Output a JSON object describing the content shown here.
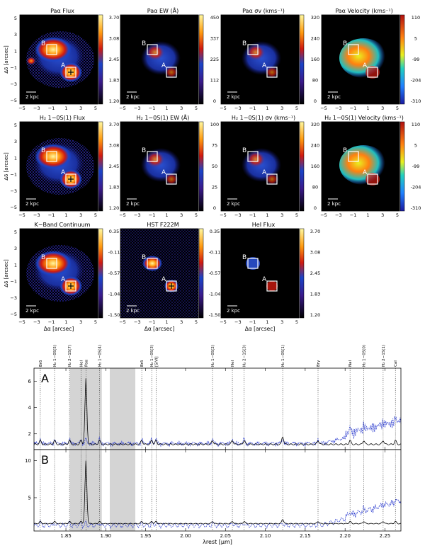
{
  "maps": {
    "panels": [
      {
        "title": "Paα Flux",
        "cbar": [
          "3.70",
          "3.08",
          "2.45",
          "1.83",
          "1.20"
        ],
        "cmap": "heat",
        "blob": "flux"
      },
      {
        "title": "Paα EW (Å)",
        "cbar": [
          "450",
          "337",
          "225",
          "112",
          "0"
        ],
        "cmap": "heat",
        "blob": "ew"
      },
      {
        "title": "Paα σv (kms⁻¹)",
        "cbar": [
          "320",
          "240",
          "160",
          "80",
          "0"
        ],
        "cmap": "heat",
        "blob": "sig"
      },
      {
        "title": "Paα Velocity (kms⁻¹)",
        "cbar": [
          "110",
          "5",
          "-99",
          "-204",
          "-310"
        ],
        "cmap": "vel",
        "blob": "vel"
      },
      {
        "title": "H₂ 1−0S(1) Flux",
        "cbar": [
          "3.70",
          "3.08",
          "2.45",
          "1.83",
          "1.20"
        ],
        "cmap": "heat",
        "blob": "flux"
      },
      {
        "title": "H₂ 1−0S(1) EW (Å)",
        "cbar": [
          "100",
          "75",
          "50",
          "25",
          "0"
        ],
        "cmap": "heat",
        "blob": "ew"
      },
      {
        "title": "H₂ 1−0S(1) σv (kms⁻¹)",
        "cbar": [
          "320",
          "240",
          "160",
          "80",
          "0"
        ],
        "cmap": "heat",
        "blob": "sig"
      },
      {
        "title": "H₂ 1−0S(1) Velocity (kms⁻¹)",
        "cbar": [
          "110",
          "5",
          "-99",
          "-204",
          "-310"
        ],
        "cmap": "vel",
        "blob": "vel"
      },
      {
        "title": "K−Band Continuum",
        "cbar": [
          "0.35",
          "-0.11",
          "-0.57",
          "-1.04",
          "-1.50"
        ],
        "cmap": "heat",
        "blob": "cont"
      },
      {
        "title": "HST F222M",
        "cbar": [
          "0.35",
          "-0.11",
          "-0.57",
          "-1.04",
          "-1.50"
        ],
        "cmap": "heat",
        "blob": "hst"
      },
      {
        "title": "HeI Flux",
        "cbar": [
          "3.70",
          "3.08",
          "2.45",
          "1.83",
          "1.20"
        ],
        "cmap": "heat",
        "blob": "hei"
      }
    ],
    "xticks": [
      "−5",
      "−3",
      "−1",
      "1",
      "3",
      "5"
    ],
    "yticks": [
      "5",
      "3",
      "1",
      "−1",
      "−3",
      "−5"
    ],
    "xlabel": "Δα [arcsec]",
    "ylabel": "Δδ [arcsec]",
    "scalebar": "2 kpc",
    "labelA": "A",
    "labelB": "B"
  },
  "spectra": {
    "panelA": "A",
    "panelB": "B",
    "xlabel": "λrest [μm]",
    "xticks": [
      "1.85",
      "1.90",
      "1.95",
      "2.00",
      "2.05",
      "2.10",
      "2.15",
      "2.20",
      "2.25"
    ],
    "yticksA": [
      "6",
      "4",
      "2"
    ],
    "yticksB": [
      "10",
      "5"
    ],
    "lines": [
      {
        "label": "Brδ",
        "lam": 1.8179
      },
      {
        "label": "H₂ 1−0S(5)",
        "lam": 1.8358
      },
      {
        "label": "H₂ 2−1S(7)",
        "lam": 1.8545
      },
      {
        "label": "HeI",
        "lam": 1.8691
      },
      {
        "label": "Paα",
        "lam": 1.8751
      },
      {
        "label": "H₂ 1−0S(4)",
        "lam": 1.892
      },
      {
        "label": "Brδ",
        "lam": 1.9451
      },
      {
        "label": "H₂ 1−0S(3)",
        "lam": 1.9576
      },
      {
        "label": "[SiVI]",
        "lam": 1.963
      },
      {
        "label": "H₂ 1−0S(2)",
        "lam": 2.0338
      },
      {
        "label": "HeI",
        "lam": 2.0587
      },
      {
        "label": "H₂ 2−1S(3)",
        "lam": 2.0735
      },
      {
        "label": "H₂ 1−0S(1)",
        "lam": 2.1218
      },
      {
        "label": "Brγ",
        "lam": 2.1661
      },
      {
        "label": "NaI",
        "lam": 2.2062
      },
      {
        "label": "H₂ 1−0S(0)",
        "lam": 2.2235
      },
      {
        "label": "H₂ 2−1S(1)",
        "lam": 2.2477
      },
      {
        "label": "CaI",
        "lam": 2.2631
      }
    ],
    "xrange": [
      1.81,
      2.27
    ],
    "yrangeA": [
      0.8,
      7.0
    ],
    "yrangeB": [
      0.5,
      11.5
    ],
    "bands": [
      [
        1.855,
        1.895
      ],
      [
        1.905,
        1.937
      ]
    ]
  }
}
